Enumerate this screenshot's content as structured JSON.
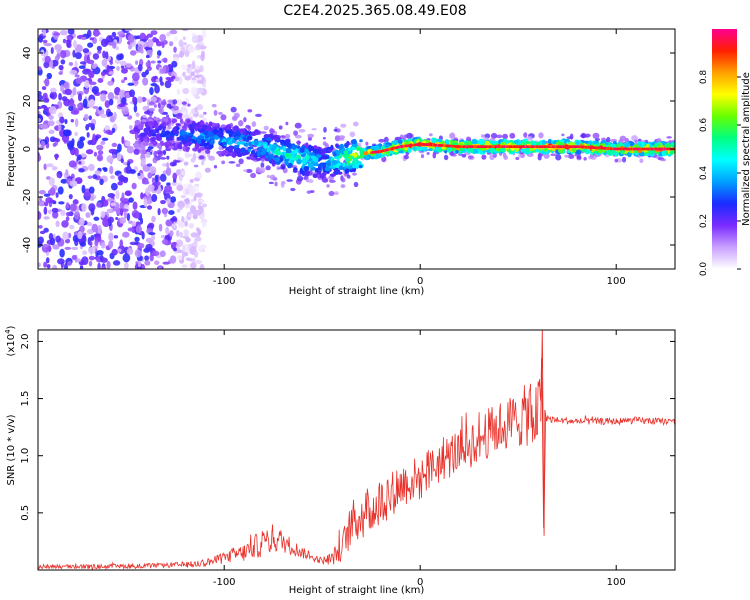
{
  "title": "C2E4.2025.365.08.49.E08",
  "chart_data": [
    {
      "type": "heatmap",
      "title": "C2E4.2025.365.08.49.E08",
      "xlabel": "Height of straight line (km)",
      "ylabel": "Frequency (Hz)",
      "xlim": [
        -195,
        130
      ],
      "ylim": [
        -50,
        50
      ],
      "xticks": [
        -100,
        0,
        100
      ],
      "yticks": [
        -40,
        -20,
        0,
        20,
        40
      ],
      "colorbar": {
        "label": "Normalized spectral amplitude",
        "range": [
          0,
          1
        ],
        "ticks": [
          "0.0",
          "0.2",
          "0.4",
          "0.6",
          "0.8"
        ],
        "ramp": [
          "#ffffff",
          "#c9a0ff",
          "#7a2bff",
          "#1a2bff",
          "#00a0ff",
          "#00ffff",
          "#00ff80",
          "#66ff00",
          "#ffff00",
          "#ffa000",
          "#ff2000",
          "#ff0090"
        ]
      },
      "ridge": {
        "x": [
          -140,
          -120,
          -100,
          -80,
          -70,
          -60,
          -50,
          -40,
          -30,
          -20,
          -10,
          0,
          20,
          40,
          60,
          80,
          100,
          130
        ],
        "freq": [
          7,
          6,
          4,
          1,
          -2,
          -4,
          -6,
          -4,
          -2,
          -1,
          1,
          2,
          1,
          1,
          1,
          1,
          0,
          0
        ],
        "amplitude": [
          0.25,
          0.35,
          0.4,
          0.45,
          0.5,
          0.55,
          0.4,
          0.6,
          0.75,
          0.85,
          0.9,
          0.9,
          0.9,
          0.9,
          0.9,
          0.9,
          0.92,
          0.92
        ]
      },
      "noise_region": {
        "x_from": -195,
        "x_to": -125,
        "amplitude": 0.2
      }
    },
    {
      "type": "line",
      "xlabel": "Height of straight line (km)",
      "ylabel": "SNR (10 * v/v)",
      "scale_label": "(x10",
      "scale_exponent": "4",
      "xlim": [
        -195,
        130
      ],
      "ylim": [
        0,
        2.1
      ],
      "xticks": [
        -100,
        0,
        100
      ],
      "yticks": [
        "0.5",
        "1.0",
        "1.5",
        "2.0"
      ],
      "ytick_values": [
        0.5,
        1.0,
        1.5,
        2.0
      ],
      "series": [
        {
          "name": "SNR",
          "color": "#e8312a",
          "x": [
            -195,
            -160,
            -130,
            -115,
            -105,
            -98,
            -90,
            -85,
            -80,
            -75,
            -70,
            -65,
            -60,
            -55,
            -50,
            -45,
            -40,
            -35,
            -30,
            -25,
            -20,
            -15,
            -10,
            -5,
            0,
            5,
            10,
            15,
            20,
            25,
            30,
            35,
            40,
            45,
            50,
            55,
            60,
            62,
            63,
            64,
            66,
            70,
            80,
            90,
            100,
            110,
            120,
            130
          ],
          "y": [
            0.03,
            0.03,
            0.04,
            0.05,
            0.08,
            0.12,
            0.15,
            0.2,
            0.24,
            0.28,
            0.25,
            0.2,
            0.15,
            0.11,
            0.08,
            0.1,
            0.2,
            0.4,
            0.48,
            0.52,
            0.6,
            0.68,
            0.74,
            0.78,
            0.8,
            0.88,
            0.95,
            1.0,
            1.05,
            1.1,
            1.15,
            1.2,
            1.25,
            1.28,
            1.32,
            1.36,
            1.35,
            1.7,
            0.3,
            1.35,
            1.32,
            1.31,
            1.3,
            1.3,
            1.3,
            1.31,
            1.3,
            1.3
          ],
          "noise": [
            0.02,
            0.02,
            0.02,
            0.03,
            0.04,
            0.06,
            0.08,
            0.1,
            0.13,
            0.13,
            0.1,
            0.07,
            0.05,
            0.03,
            0.03,
            0.06,
            0.12,
            0.2,
            0.22,
            0.22,
            0.22,
            0.22,
            0.2,
            0.2,
            0.2,
            0.2,
            0.2,
            0.2,
            0.2,
            0.22,
            0.22,
            0.22,
            0.22,
            0.24,
            0.26,
            0.28,
            0.3,
            0.2,
            0.05,
            0.04,
            0.03,
            0.03,
            0.03,
            0.03,
            0.03,
            0.03,
            0.03,
            0.03
          ]
        }
      ]
    }
  ]
}
